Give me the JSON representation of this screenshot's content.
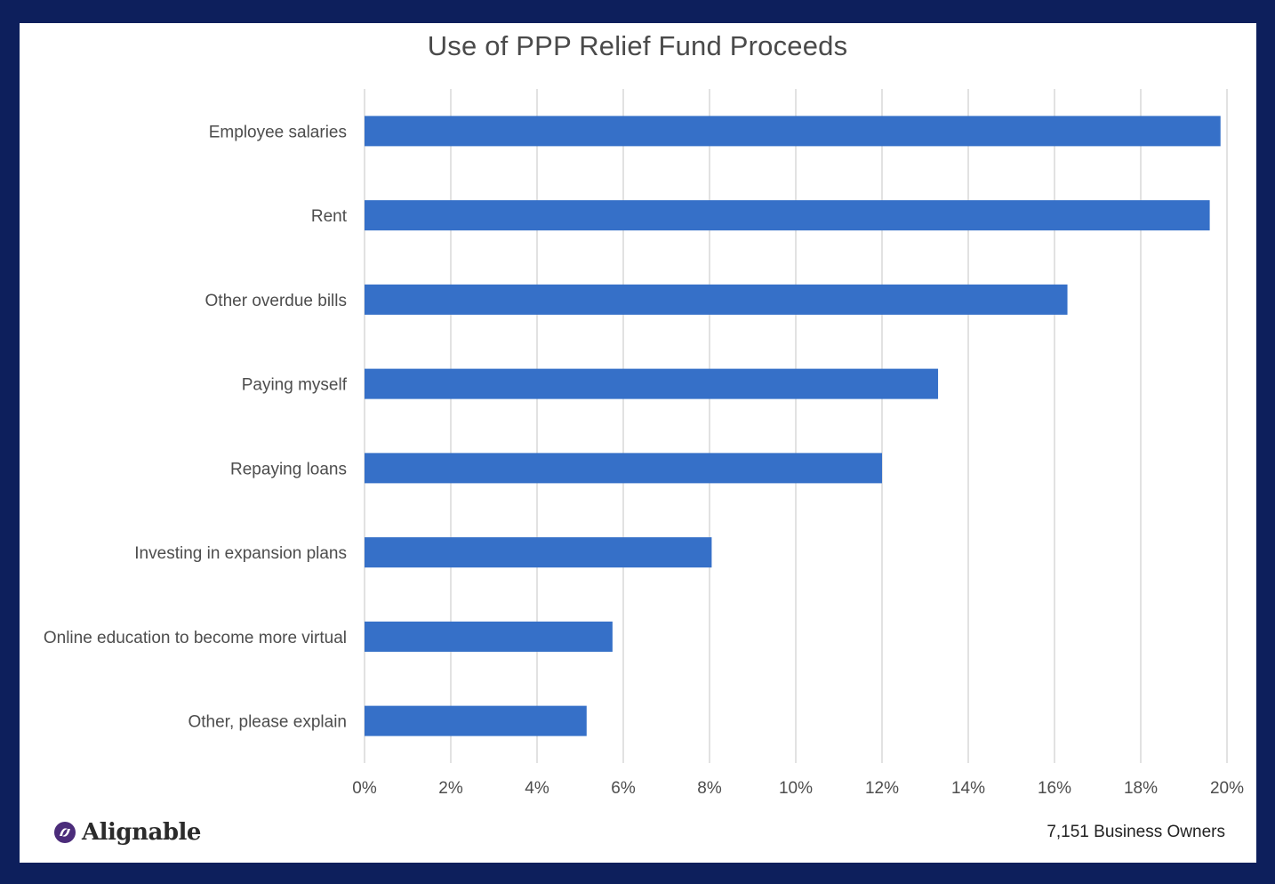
{
  "chart_data": {
    "type": "bar",
    "orientation": "horizontal",
    "title": "Use of PPP Relief Fund Proceeds",
    "categories": [
      "Employee salaries",
      "Rent",
      "Other overdue bills",
      "Paying myself",
      "Repaying loans",
      "Investing in expansion plans",
      "Online education to become more virtual",
      "Other, please explain"
    ],
    "values": [
      19.85,
      19.6,
      16.3,
      13.3,
      12.0,
      8.05,
      5.75,
      5.15
    ],
    "value_unit": "%",
    "xlim": [
      0,
      20
    ],
    "xticks": [
      "0%",
      "2%",
      "4%",
      "6%",
      "8%",
      "10%",
      "12%",
      "14%",
      "16%",
      "18%",
      "20%"
    ],
    "grid": "vertical",
    "bar_color": "#3670c8"
  },
  "logo": {
    "text": "Alignable"
  },
  "footnote": "7,151 Business Owners",
  "colors": {
    "frame": "#0d1f5c",
    "bar": "#3670c8",
    "grid": "#d9d9d9"
  }
}
